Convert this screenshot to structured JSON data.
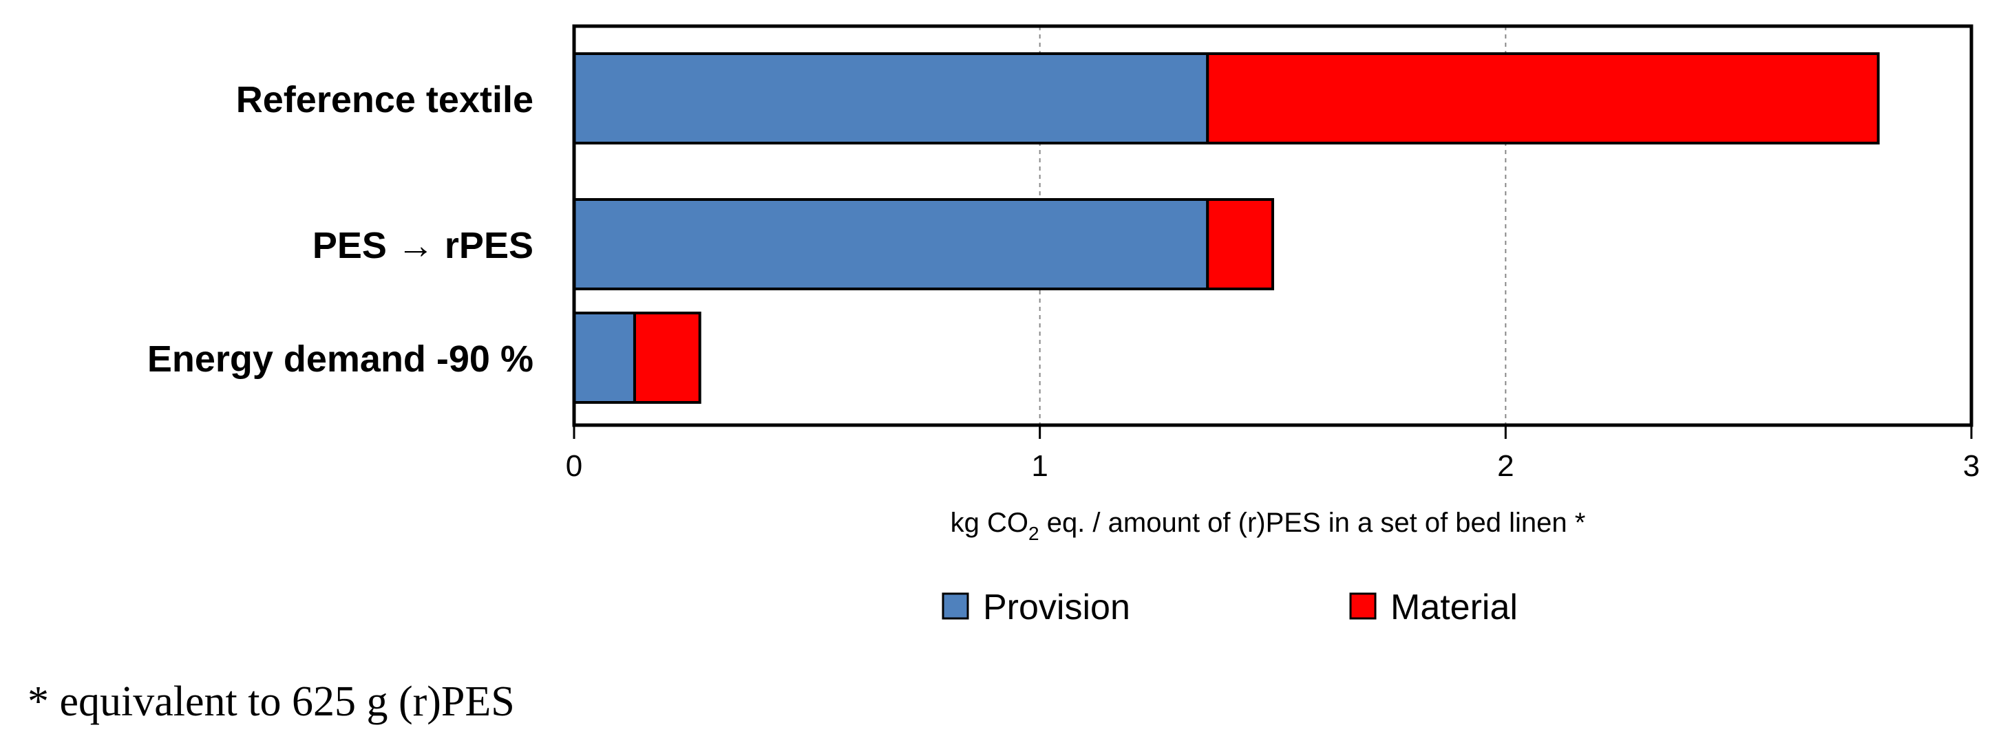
{
  "chart_data": {
    "type": "bar",
    "orientation": "horizontal",
    "stacked": true,
    "categories": [
      "Reference textile",
      "PES → rPES",
      "Energy demand -90 %"
    ],
    "series": [
      {
        "name": "Provision",
        "color": "#4f81bd",
        "values": [
          1.36,
          1.36,
          0.13
        ]
      },
      {
        "name": "Material",
        "color": "#ff0000",
        "values": [
          1.44,
          0.14,
          0.14
        ]
      }
    ],
    "xlim": [
      0,
      3
    ],
    "xticks": [
      0,
      1,
      2,
      3
    ],
    "xlabel_parts": [
      "kg CO",
      "2",
      " eq. / amount of (r)PES in a set of bed linen *"
    ],
    "grid": "vertical-dashed",
    "legend_position": "bottom"
  },
  "footnote": "* equivalent to 625 g (r)PES"
}
